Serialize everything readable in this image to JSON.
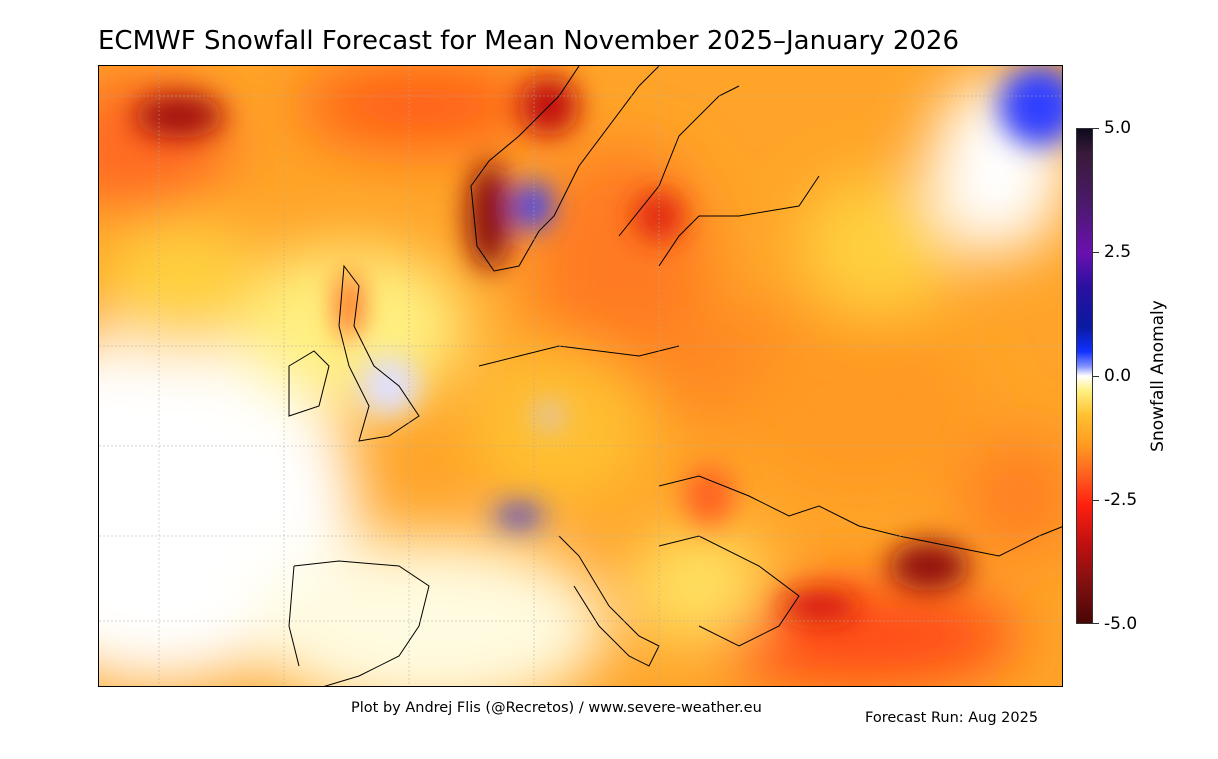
{
  "title": "ECMWF Snowfall Forecast for Mean November 2025–January 2026",
  "map": {
    "region": "Europe",
    "field": "snowfall anomaly",
    "colors": {
      "strong_negative": "#4a0505",
      "negative": "#ff2010",
      "slight_negative": "#ffa020",
      "neutral": "#ffffff",
      "positive": "#1030ff",
      "strong_positive": "#0d0a1e"
    }
  },
  "colorbar": {
    "label": "Snowfall Anomaly",
    "range": [
      -5.0,
      5.0
    ],
    "ticks": [
      "5.0",
      "2.5",
      "0.0",
      "-2.5",
      "-5.0"
    ]
  },
  "footer": {
    "credit": "Plot by Andrej Flis (@Recretos) / www.severe-weather.eu",
    "forecast_run": "Forecast Run: Aug 2025"
  }
}
